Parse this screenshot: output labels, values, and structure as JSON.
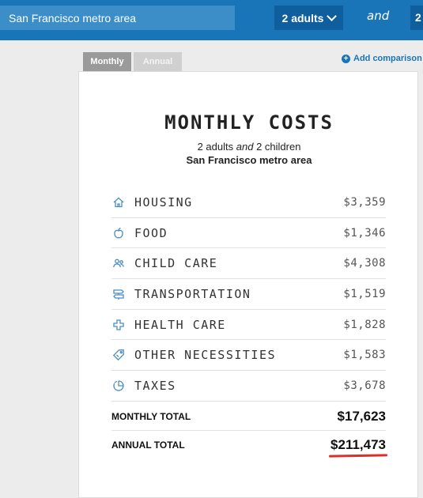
{
  "header": {
    "location_value": "San Francisco metro area",
    "adults_label": "2 adults",
    "and_word": "and",
    "children_label": "2"
  },
  "tabs": [
    {
      "label": "Monthly",
      "active": true
    },
    {
      "label": "Annual",
      "active": false
    }
  ],
  "add_comparison_label": "Add comparison",
  "card": {
    "title": "MONTHLY COSTS",
    "household": {
      "adults": "2 adults",
      "and": "and",
      "children": "2 children"
    },
    "location": "San Francisco metro area",
    "items": [
      {
        "icon": "house-icon",
        "label": "HOUSING",
        "value": "$3,359"
      },
      {
        "icon": "apple-icon",
        "label": "FOOD",
        "value": "$1,346"
      },
      {
        "icon": "people-icon",
        "label": "CHILD CARE",
        "value": "$4,308"
      },
      {
        "icon": "signpost-icon",
        "label": "TRANSPORTATION",
        "value": "$1,519"
      },
      {
        "icon": "medical-cross-icon",
        "label": "HEALTH CARE",
        "value": "$1,828"
      },
      {
        "icon": "tag-icon",
        "label": "OTHER NECESSITIES",
        "value": "$1,583"
      },
      {
        "icon": "taxes-pie-icon",
        "label": "TAXES",
        "value": "$3,678"
      }
    ],
    "monthly_total": {
      "label": "MONTHLY TOTAL",
      "value": "$17,623"
    },
    "annual_total": {
      "label": "ANNUAL TOTAL",
      "value": "$211,473"
    }
  },
  "colors": {
    "header_bg": "#1a74b8",
    "icon_color": "#4a8ec4",
    "accent_underline": "#d9302a"
  }
}
